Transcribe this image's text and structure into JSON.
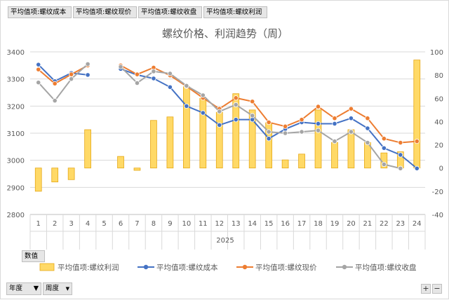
{
  "filter_buttons": [
    "平均值项:螺纹成本",
    "平均值项:螺纹现价",
    "平均值项:螺纹收盘",
    "平均值项:螺纹利润"
  ],
  "values_button": "数值",
  "axis_buttons": {
    "year": "年度",
    "week": "周度"
  },
  "zoom": {
    "plus": "+",
    "minus": "−"
  },
  "colors": {
    "profit": "#ffd966",
    "profit_border": "#e6a817",
    "cost": "#4472c4",
    "price": "#ed7d31",
    "close": "#a5a5a5"
  },
  "chart_data": {
    "type": "bar+line",
    "title": "螺纹价格、利润趋势（周）",
    "x_group_label": "2025",
    "categories": [
      "1",
      "2",
      "3",
      "4",
      "5",
      "6",
      "7",
      "8",
      "9",
      "10",
      "11",
      "12",
      "13",
      "14",
      "15",
      "16",
      "17",
      "18",
      "19",
      "20",
      "21",
      "22",
      "23",
      "24"
    ],
    "y_left": {
      "min": 2800,
      "max": 3400,
      "step": 100
    },
    "y_right": {
      "min": -40,
      "max": 100,
      "step": 20
    },
    "grid": true,
    "legend_position": "bottom",
    "series": [
      {
        "name": "平均值项:螺纹利润",
        "type": "bar",
        "axis": "right",
        "values": [
          -20,
          -12,
          -10,
          33,
          null,
          10,
          -2,
          41,
          44,
          70,
          60,
          48,
          64,
          50,
          39,
          7,
          12,
          50,
          22,
          33,
          22,
          13,
          14,
          93
        ]
      },
      {
        "name": "平均值项:螺纹成本",
        "type": "line",
        "axis": "left",
        "values": [
          3353,
          3292,
          3322,
          3315,
          null,
          3337,
          3315,
          3302,
          3270,
          3200,
          3175,
          3130,
          3150,
          3150,
          3080,
          3115,
          3140,
          3135,
          3135,
          3155,
          3118,
          3045,
          3020,
          2970
        ]
      },
      {
        "name": "平均值项:螺纹现价",
        "type": "line",
        "axis": "left",
        "values": [
          3335,
          3283,
          3317,
          3350,
          null,
          3350,
          3317,
          3342,
          3313,
          3273,
          3230,
          3190,
          3230,
          3217,
          3140,
          3125,
          3150,
          3198,
          3155,
          3190,
          3155,
          3080,
          3065,
          3070
        ]
      },
      {
        "name": "平均值项:螺纹收盘",
        "type": "line",
        "axis": "left",
        "values": [
          3287,
          3220,
          3300,
          3355,
          null,
          3345,
          3285,
          3328,
          3320,
          3275,
          3240,
          3180,
          3205,
          3165,
          3105,
          3100,
          3105,
          3110,
          3070,
          3105,
          3065,
          2985,
          2970,
          null
        ]
      }
    ]
  }
}
